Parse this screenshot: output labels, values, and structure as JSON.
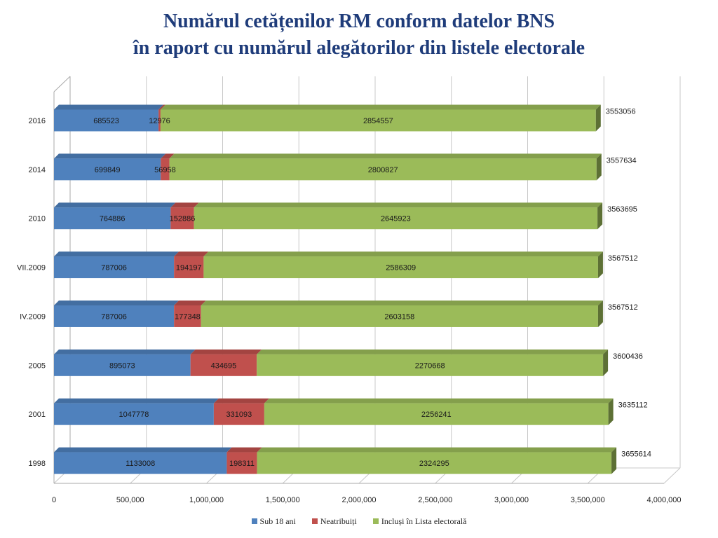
{
  "chart_data": {
    "type": "bar",
    "orientation": "horizontal",
    "stacked": true,
    "three_d": true,
    "title": [
      "Numărul cetățenilor RM conform datelor BNS",
      "în raport cu numărul alegătorilor din listele electorale"
    ],
    "categories": [
      "1998",
      "2001",
      "2005",
      "IV.2009",
      "VII.2009",
      "2010",
      "2014",
      "2016"
    ],
    "series": [
      {
        "name": "Sub 18 ani",
        "color": "#4f81bd",
        "values": [
          1133008,
          1047778,
          895073,
          787006,
          787006,
          764886,
          699849,
          685523
        ]
      },
      {
        "name": "Neatribuiți",
        "color": "#c0504d",
        "values": [
          198311,
          331093,
          434695,
          177348,
          194197,
          152886,
          56958,
          12976
        ]
      },
      {
        "name": "Incluși în Lista electorală",
        "color": "#9bbb59",
        "values": [
          2324295,
          2256241,
          2270668,
          2603158,
          2586309,
          2645923,
          2800827,
          2854557
        ]
      }
    ],
    "totals": [
      3655614,
      3635112,
      3600436,
      3567512,
      3567512,
      3563695,
      3557634,
      3553056
    ],
    "xlim": [
      0,
      4000000
    ],
    "xticks": [
      "0",
      "500,000",
      "1,000,000",
      "1,500,000",
      "2,000,000",
      "2,500,000",
      "3,000,000",
      "3,500,000",
      "4,000,000"
    ],
    "grid": true,
    "legend_position": "bottom"
  }
}
